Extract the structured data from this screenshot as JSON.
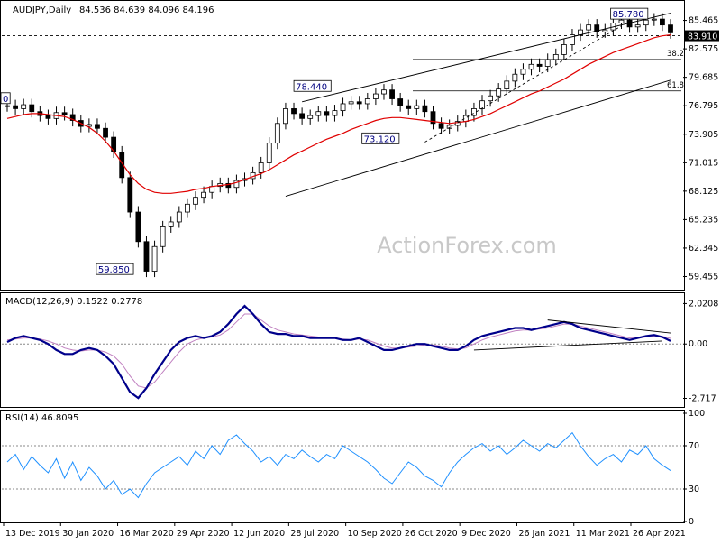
{
  "chart_data": [
    {
      "type": "candlestick",
      "panel": "price",
      "header": {
        "symbol": "AUDJPY,Daily",
        "ohlc": "84.536 84.639 84.096 84.196"
      },
      "watermark": "ActionForex.com",
      "ylim": [
        58.4,
        86.8
      ],
      "y_ticks": [
        "85.465",
        "82.575",
        "79.685",
        "76.795",
        "73.905",
        "71.015",
        "68.125",
        "65.235",
        "62.345",
        "59.455"
      ],
      "current_price": "83.910",
      "x_ticks": [
        "13 Dec 2019",
        "30 Jan 2020",
        "16 Mar 2020",
        "29 Apr 2020",
        "12 Jun 2020",
        "28 Jul 2020",
        "10 Sep 2020",
        "26 Oct 2020",
        "9 Dec 2020",
        "26 Jan 2021",
        "11 Mar 2021",
        "26 Apr 2021"
      ],
      "annotations": [
        {
          "text": "85.780",
          "x": 0.895,
          "y": 85.78
        },
        {
          "text": "78.440",
          "x": 0.43,
          "y": 78.44
        },
        {
          "text": "73.120",
          "x": 0.53,
          "y": 73.12
        },
        {
          "text": "59.850",
          "x": 0.14,
          "y": 59.85
        },
        {
          "text": "0",
          "x": 0.0,
          "y": 77.2
        }
      ],
      "fib_levels": [
        {
          "label": "38.2",
          "value": 81.5
        },
        {
          "label": "61.8",
          "value": 78.3
        }
      ],
      "series": [
        {
          "name": "price",
          "values": [
            76.8,
            76.5,
            76.9,
            76.2,
            75.8,
            75.5,
            76.1,
            75.9,
            75.3,
            74.7,
            74.9,
            74.5,
            73.6,
            72.1,
            69.5,
            66.0,
            63.0,
            60.0,
            62.5,
            64.5,
            65.0,
            66.0,
            66.8,
            67.5,
            68.0,
            68.6,
            68.9,
            68.5,
            69.2,
            69.4,
            70.0,
            71.0,
            73.0,
            75.0,
            76.5,
            76.0,
            75.5,
            75.8,
            76.2,
            75.8,
            76.3,
            77.0,
            77.2,
            77.0,
            77.5,
            78.0,
            78.4,
            77.5,
            76.8,
            76.5,
            76.8,
            76.2,
            75.0,
            74.5,
            74.8,
            75.2,
            75.8,
            76.5,
            77.3,
            77.8,
            78.5,
            79.3,
            80.0,
            80.5,
            81.0,
            80.8,
            81.5,
            82.0,
            83.0,
            84.0,
            84.5,
            85.0,
            84.3,
            84.5,
            85.2,
            85.5,
            84.8,
            85.0,
            85.5,
            85.6,
            85.0,
            84.2
          ],
          "ma": [
            75.5,
            75.7,
            75.9,
            76.0,
            76.0,
            75.9,
            75.8,
            75.7,
            75.4,
            75.0,
            74.6,
            74.0,
            73.2,
            72.2,
            71.0,
            69.8,
            68.9,
            68.3,
            68.0,
            67.9,
            67.9,
            68.0,
            68.1,
            68.3,
            68.4,
            68.6,
            68.7,
            68.8,
            69.0,
            69.3,
            69.6,
            69.9,
            70.3,
            70.8,
            71.3,
            71.8,
            72.2,
            72.6,
            73.0,
            73.4,
            73.7,
            74.0,
            74.4,
            74.7,
            75.0,
            75.3,
            75.5,
            75.6,
            75.6,
            75.5,
            75.4,
            75.3,
            75.2,
            75.1,
            75.0,
            75.1,
            75.2,
            75.4,
            75.7,
            76.0,
            76.4,
            76.8,
            77.2,
            77.6,
            78.0,
            78.3,
            78.7,
            79.1,
            79.5,
            80.0,
            80.5,
            81.0,
            81.4,
            81.8,
            82.2,
            82.5,
            82.8,
            83.1,
            83.4,
            83.7,
            83.9,
            84.0
          ]
        }
      ]
    },
    {
      "type": "line",
      "panel": "macd",
      "header": "MACD(12,26,9) 0.1522 0.2778",
      "ylim": [
        -3.1,
        2.4
      ],
      "y_ticks": [
        "2.0208",
        "0.00",
        "-2.717"
      ],
      "series": [
        {
          "name": "macd",
          "values": [
            0.1,
            0.3,
            0.4,
            0.3,
            0.2,
            0.0,
            -0.3,
            -0.5,
            -0.5,
            -0.3,
            -0.2,
            -0.3,
            -0.6,
            -1.0,
            -1.7,
            -2.4,
            -2.7,
            -2.2,
            -1.5,
            -0.9,
            -0.3,
            0.1,
            0.3,
            0.4,
            0.3,
            0.4,
            0.6,
            1.0,
            1.5,
            1.9,
            1.5,
            1.0,
            0.6,
            0.5,
            0.5,
            0.4,
            0.4,
            0.3,
            0.3,
            0.3,
            0.3,
            0.2,
            0.2,
            0.3,
            0.1,
            -0.1,
            -0.3,
            -0.3,
            -0.2,
            -0.1,
            0.0,
            0.0,
            -0.1,
            -0.2,
            -0.3,
            -0.3,
            -0.1,
            0.2,
            0.4,
            0.5,
            0.6,
            0.7,
            0.8,
            0.8,
            0.7,
            0.8,
            0.9,
            1.0,
            1.1,
            1.0,
            0.8,
            0.7,
            0.6,
            0.5,
            0.4,
            0.3,
            0.2,
            0.3,
            0.4,
            0.45,
            0.35,
            0.15
          ]
        },
        {
          "name": "signal",
          "values": [
            0.2,
            0.25,
            0.3,
            0.3,
            0.25,
            0.15,
            0.0,
            -0.2,
            -0.3,
            -0.35,
            -0.3,
            -0.3,
            -0.4,
            -0.6,
            -1.0,
            -1.6,
            -2.1,
            -2.2,
            -1.9,
            -1.4,
            -0.9,
            -0.4,
            0.0,
            0.2,
            0.3,
            0.35,
            0.45,
            0.7,
            1.1,
            1.5,
            1.5,
            1.2,
            0.9,
            0.7,
            0.6,
            0.5,
            0.45,
            0.4,
            0.35,
            0.3,
            0.3,
            0.25,
            0.2,
            0.25,
            0.2,
            0.05,
            -0.1,
            -0.2,
            -0.2,
            -0.15,
            -0.1,
            -0.05,
            -0.05,
            -0.1,
            -0.2,
            -0.25,
            -0.2,
            0.0,
            0.2,
            0.35,
            0.45,
            0.55,
            0.65,
            0.7,
            0.7,
            0.75,
            0.8,
            0.9,
            1.0,
            1.0,
            0.9,
            0.8,
            0.7,
            0.6,
            0.5,
            0.4,
            0.3,
            0.3,
            0.35,
            0.4,
            0.38,
            0.28
          ]
        }
      ]
    },
    {
      "type": "line",
      "panel": "rsi",
      "header": "RSI(14) 46.8095",
      "ylim": [
        0,
        100
      ],
      "y_ticks": [
        "100",
        "70",
        "30",
        "0"
      ],
      "series": [
        {
          "name": "rsi",
          "values": [
            55,
            62,
            48,
            60,
            52,
            45,
            58,
            40,
            55,
            38,
            50,
            42,
            30,
            38,
            25,
            30,
            22,
            35,
            45,
            50,
            55,
            60,
            52,
            65,
            58,
            70,
            62,
            75,
            80,
            72,
            65,
            55,
            60,
            52,
            62,
            58,
            66,
            60,
            55,
            62,
            58,
            70,
            65,
            60,
            55,
            48,
            40,
            35,
            45,
            55,
            50,
            42,
            38,
            32,
            45,
            55,
            62,
            68,
            72,
            65,
            70,
            62,
            68,
            75,
            70,
            65,
            72,
            68,
            75,
            82,
            70,
            60,
            52,
            58,
            62,
            55,
            66,
            62,
            70,
            58,
            52,
            47
          ]
        }
      ]
    }
  ]
}
